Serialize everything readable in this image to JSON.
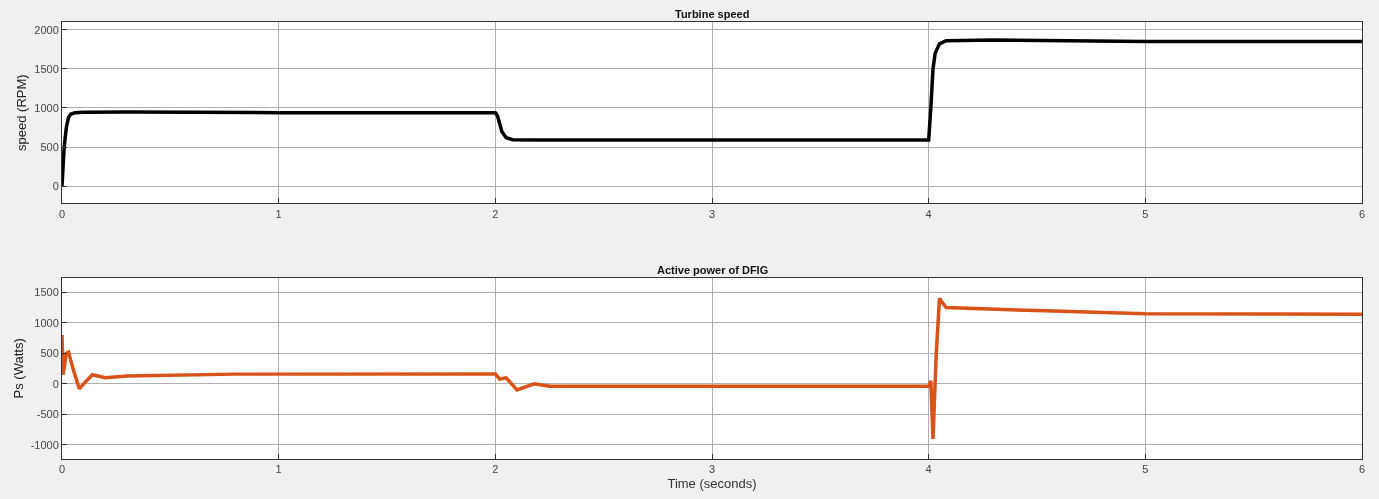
{
  "chart_data": [
    {
      "type": "line",
      "title": "Turbine speed",
      "ylabel": "speed (RPM)",
      "xlim": [
        0,
        6
      ],
      "xticks": [
        0,
        1,
        2,
        3,
        4,
        5,
        6
      ],
      "ylim": [
        -220,
        2100
      ],
      "yticks": [
        0,
        500,
        1000,
        1500,
        2000
      ],
      "grid": true,
      "legend": false,
      "series": [
        {
          "color": "#000000",
          "x": [
            0,
            0.01,
            0.02,
            0.03,
            0.04,
            0.06,
            0.1,
            0.3,
            1.0,
            2.0,
            2.01,
            2.03,
            2.05,
            2.08,
            2.2,
            3,
            4.0,
            4.01,
            4.02,
            4.03,
            4.05,
            4.08,
            4.3,
            5,
            6
          ],
          "values": [
            0,
            500,
            750,
            880,
            920,
            940,
            945,
            950,
            940,
            940,
            900,
            700,
            620,
            595,
            590,
            590,
            590,
            1000,
            1500,
            1700,
            1820,
            1860,
            1870,
            1850,
            1850
          ]
        }
      ]
    },
    {
      "type": "line",
      "title": "Active power of DFIG",
      "ylabel": "Ps (Watts)",
      "xlabel": "Time (seconds)",
      "xlim": [
        0,
        6
      ],
      "xticks": [
        0,
        1,
        2,
        3,
        4,
        5,
        6
      ],
      "ylim": [
        -1230,
        1740
      ],
      "yticks": [
        -1000,
        -500,
        0,
        500,
        1000,
        1500
      ],
      "grid": true,
      "legend": false,
      "series": [
        {
          "color": "#d95319",
          "x": [
            0,
            0.005,
            0.02,
            0.03,
            0.055,
            0.08,
            0.1,
            0.14,
            0.2,
            0.3,
            0.8,
            2.0,
            2.02,
            2.05,
            2.1,
            2.18,
            2.25,
            3,
            4.0,
            4.01,
            4.02,
            4.035,
            4.05,
            4.08,
            4.5,
            5,
            6
          ],
          "values": [
            800,
            150,
            500,
            520,
            200,
            -80,
            0,
            150,
            100,
            130,
            160,
            160,
            80,
            100,
            -100,
            0,
            -40,
            -40,
            -40,
            50,
            -900,
            500,
            1400,
            1250,
            1200,
            1150,
            1140
          ]
        }
      ]
    }
  ]
}
